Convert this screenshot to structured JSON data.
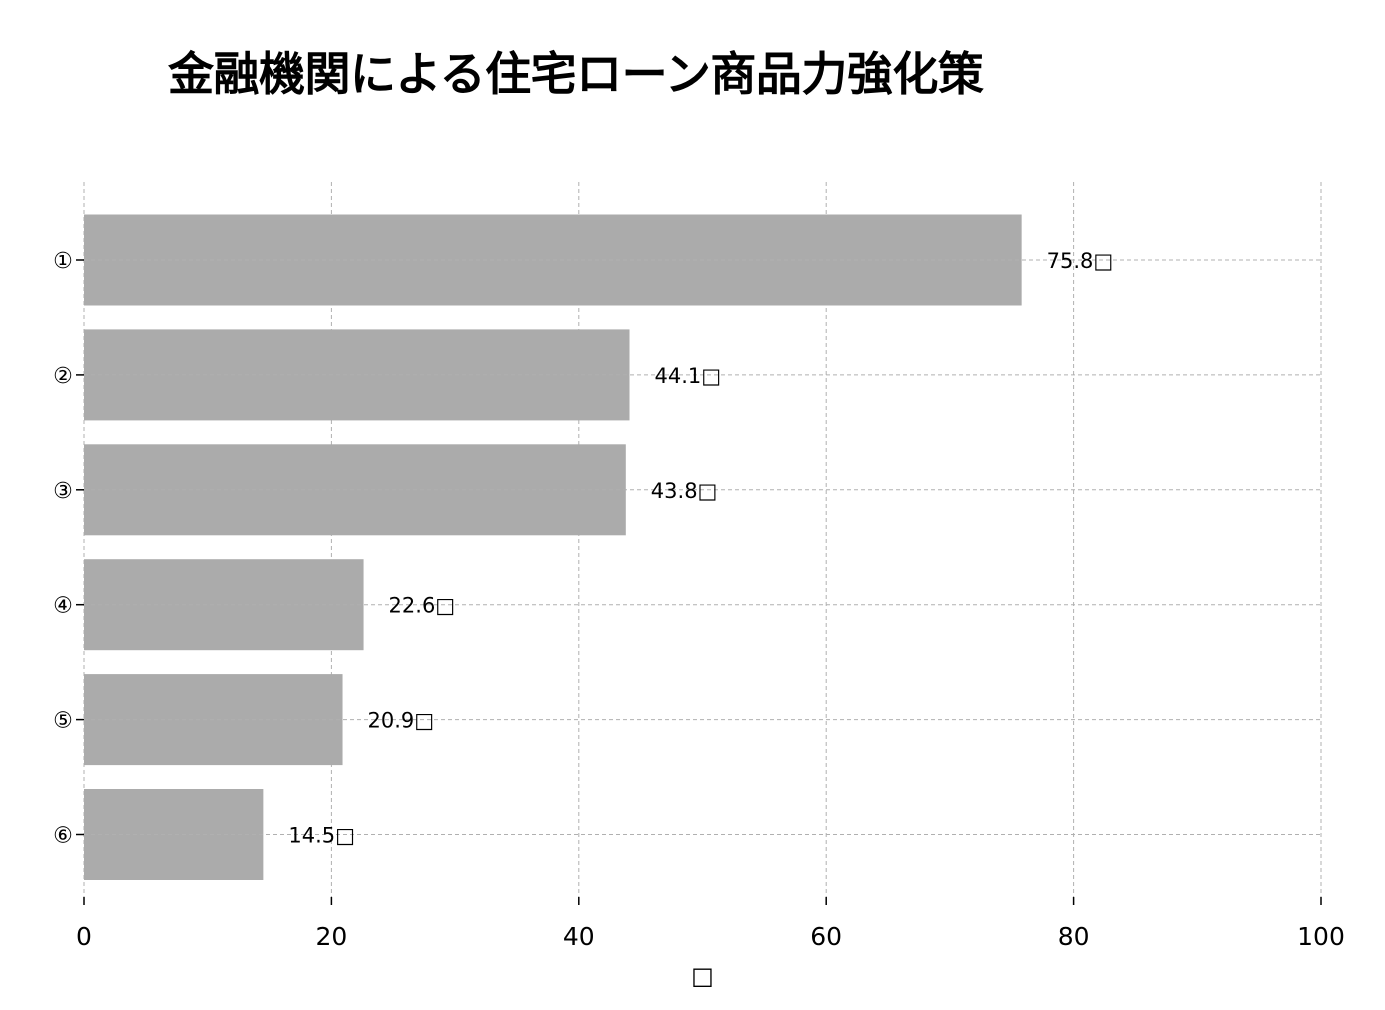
{
  "chart_data": {
    "type": "bar",
    "orientation": "horizontal",
    "title": "金融機関による住宅ローン商品力強化策",
    "xlabel": "□",
    "ylabel": "",
    "categories": [
      "①",
      "②",
      "③",
      "④",
      "⑤",
      "⑥"
    ],
    "values": [
      75.8,
      44.1,
      43.8,
      22.6,
      20.9,
      14.5
    ],
    "value_labels": [
      "75.8□",
      "44.1□",
      "43.8□",
      "22.6□",
      "20.9□",
      "14.5□"
    ],
    "xlim": [
      0,
      100
    ],
    "xticks": [
      0,
      20,
      40,
      60,
      80,
      100
    ],
    "xtick_labels": [
      "0",
      "20",
      "40",
      "60",
      "80",
      "100"
    ],
    "grid": true,
    "legend": "none",
    "colors": {
      "bar": "#ababab",
      "grid": "#b0b0b0",
      "text": "#000000"
    }
  }
}
